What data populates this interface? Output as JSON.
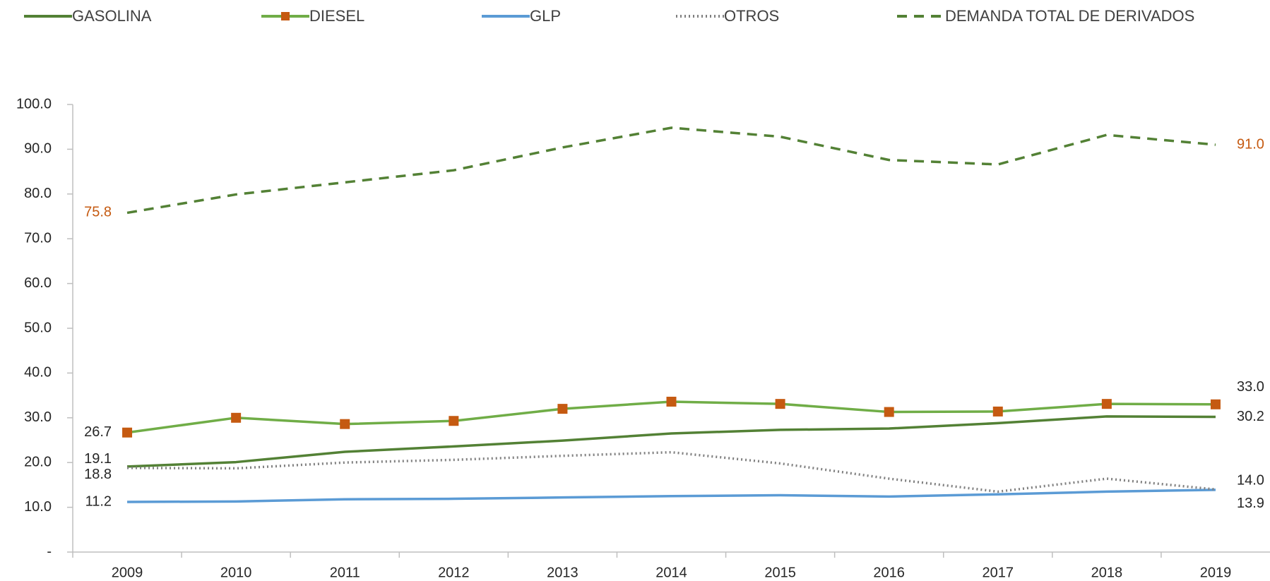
{
  "chart_data": {
    "type": "line",
    "categories": [
      "2009",
      "2010",
      "2011",
      "2012",
      "2013",
      "2014",
      "2015",
      "2016",
      "2017",
      "2018",
      "2019"
    ],
    "ylim": [
      0,
      100
    ],
    "yticks": [
      {
        "value": 0,
        "label": "-"
      },
      {
        "value": 10,
        "label": "10.0"
      },
      {
        "value": 20,
        "label": "20.0"
      },
      {
        "value": 30,
        "label": "30.0"
      },
      {
        "value": 40,
        "label": "40.0"
      },
      {
        "value": 50,
        "label": "50.0"
      },
      {
        "value": 60,
        "label": "60.0"
      },
      {
        "value": 70,
        "label": "70.0"
      },
      {
        "value": 80,
        "label": "80.0"
      },
      {
        "value": 90,
        "label": "90.0"
      },
      {
        "value": 100,
        "label": "100.0"
      }
    ],
    "grid": false,
    "legend": "top",
    "series": [
      {
        "name": "GASOLINA",
        "color": "#538135",
        "style": "solid",
        "values": [
          19.1,
          20.1,
          22.4,
          23.6,
          24.9,
          26.5,
          27.3,
          27.6,
          28.8,
          30.3,
          30.2
        ],
        "value_labels": [
          "19.1",
          null,
          null,
          null,
          null,
          null,
          null,
          null,
          null,
          null,
          "30.2"
        ]
      },
      {
        "name": "DIESEL",
        "color": "#70ad47",
        "marker_color": "#c55a11",
        "style": "solid",
        "marker": "square",
        "values": [
          26.7,
          30.0,
          28.6,
          29.3,
          32.0,
          33.6,
          33.1,
          31.3,
          31.4,
          33.1,
          33.0
        ],
        "value_labels": [
          "26.7",
          null,
          null,
          null,
          null,
          null,
          null,
          null,
          null,
          null,
          "33.0"
        ]
      },
      {
        "name": "GLP",
        "color": "#5b9bd5",
        "style": "solid",
        "values": [
          11.2,
          11.3,
          11.8,
          11.9,
          12.2,
          12.5,
          12.7,
          12.4,
          12.9,
          13.5,
          13.9
        ],
        "value_labels": [
          "11.2",
          null,
          null,
          null,
          null,
          null,
          null,
          null,
          null,
          null,
          "13.9"
        ]
      },
      {
        "name": "OTROS",
        "color": "#808080",
        "style": "dotted",
        "values": [
          18.8,
          18.7,
          20.0,
          20.6,
          21.5,
          22.3,
          19.8,
          16.4,
          13.5,
          16.4,
          14.0
        ],
        "value_labels": [
          "18.8",
          null,
          null,
          null,
          null,
          null,
          null,
          null,
          null,
          null,
          "14.0"
        ]
      },
      {
        "name": "DEMANDA TOTAL DE DERIVADOS",
        "color": "#538135",
        "label_color": "#c55a11",
        "style": "dashed",
        "values": [
          75.8,
          79.9,
          82.6,
          85.3,
          90.4,
          94.8,
          92.8,
          87.6,
          86.6,
          93.2,
          91.0
        ],
        "value_labels": [
          "75.8",
          null,
          null,
          null,
          null,
          null,
          null,
          null,
          null,
          null,
          "91.0"
        ]
      }
    ]
  }
}
